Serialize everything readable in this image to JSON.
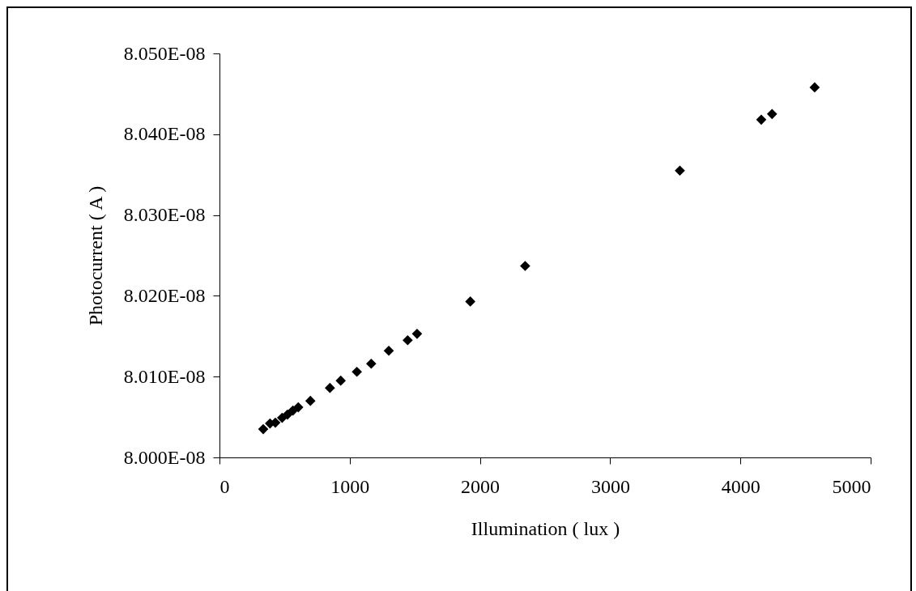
{
  "chart_data": {
    "type": "scatter",
    "xlabel": "Illumination ( lux )",
    "ylabel": "Photocurrent ( A )",
    "x": [
      336,
      388,
      429,
      481,
      522,
      564,
      605,
      698,
      848,
      931,
      1055,
      1165,
      1300,
      1445,
      1517,
      1926,
      2347,
      3535,
      4160,
      4243,
      4570
    ],
    "series": [
      {
        "color": "#000000",
        "values": [
          8.0035e-08,
          8.0042e-08,
          8.0043e-08,
          8.0049e-08,
          8.0053e-08,
          8.0058e-08,
          8.0062e-08,
          8.007e-08,
          8.0086e-08,
          8.0095e-08,
          8.0106e-08,
          8.0116e-08,
          8.0132e-08,
          8.0145e-08,
          8.0153e-08,
          8.0193e-08,
          8.0237e-08,
          8.0355e-08,
          8.0418e-08,
          8.0425e-08,
          8.0458e-08
        ]
      }
    ],
    "xlim": [
      0,
      5000
    ],
    "xticks": [
      0,
      1000,
      2000,
      3000,
      4000,
      5000
    ],
    "ylim": [
      8e-08,
      8.05e-08
    ],
    "yticks": [
      {
        "value": 8e-08,
        "label": "8.000E-08"
      },
      {
        "value": 8.01e-08,
        "label": "8.010E-08"
      },
      {
        "value": 8.02e-08,
        "label": "8.020E-08"
      },
      {
        "value": 8.03e-08,
        "label": "8.030E-08"
      },
      {
        "value": 8.04e-08,
        "label": "8.040E-08"
      },
      {
        "value": 8.05e-08,
        "label": "8.050E-08"
      }
    ],
    "grid": false,
    "marker": "diamond"
  }
}
